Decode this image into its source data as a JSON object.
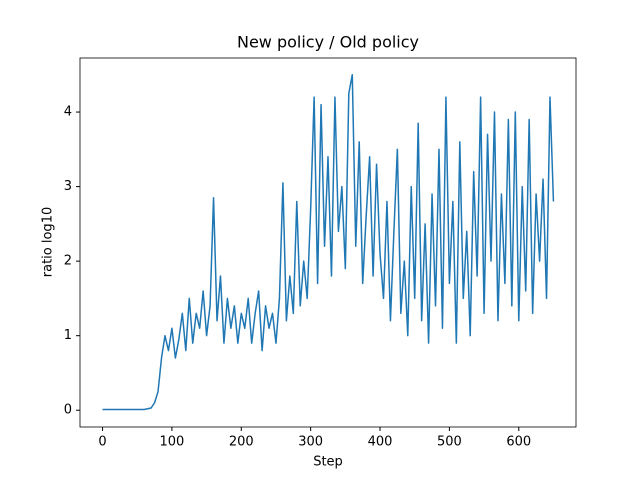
{
  "chart_data": {
    "type": "line",
    "title": "New policy / Old policy",
    "x_label": "Step",
    "y_label": "ratio log10",
    "xlim": [
      -32.5,
      682.5
    ],
    "ylim": [
      -0.225,
      4.725
    ],
    "xticks": [
      0,
      100,
      200,
      300,
      400,
      500,
      600
    ],
    "yticks": [
      0,
      1,
      2,
      3,
      4
    ],
    "x": [
      0,
      5,
      10,
      15,
      20,
      25,
      30,
      35,
      40,
      45,
      50,
      55,
      60,
      65,
      70,
      75,
      80,
      85,
      90,
      95,
      100,
      105,
      110,
      115,
      120,
      125,
      130,
      135,
      140,
      145,
      150,
      155,
      160,
      165,
      170,
      175,
      180,
      185,
      190,
      195,
      200,
      205,
      210,
      215,
      220,
      225,
      230,
      235,
      240,
      245,
      250,
      255,
      260,
      265,
      270,
      275,
      280,
      285,
      290,
      295,
      300,
      305,
      310,
      315,
      320,
      325,
      330,
      335,
      340,
      345,
      350,
      355,
      360,
      365,
      370,
      375,
      380,
      385,
      390,
      395,
      400,
      405,
      410,
      415,
      420,
      425,
      430,
      435,
      440,
      445,
      450,
      455,
      460,
      465,
      470,
      475,
      480,
      485,
      490,
      495,
      500,
      505,
      510,
      515,
      520,
      525,
      530,
      535,
      540,
      545,
      550,
      555,
      560,
      565,
      570,
      575,
      580,
      585,
      590,
      595,
      600,
      605,
      610,
      615,
      620,
      625,
      630,
      635,
      640,
      645,
      650
    ],
    "series": [
      {
        "color": "#1f77b4",
        "values": [
          0.01,
          0.01,
          0.01,
          0.01,
          0.01,
          0.01,
          0.01,
          0.01,
          0.01,
          0.01,
          0.01,
          0.01,
          0.01,
          0.02,
          0.03,
          0.1,
          0.25,
          0.7,
          1.0,
          0.8,
          1.1,
          0.7,
          0.95,
          1.3,
          0.8,
          1.5,
          0.9,
          1.3,
          1.1,
          1.6,
          1.0,
          1.4,
          2.85,
          1.2,
          1.8,
          0.9,
          1.5,
          1.1,
          1.4,
          0.9,
          1.3,
          1.1,
          1.5,
          0.9,
          1.3,
          1.6,
          0.8,
          1.4,
          1.1,
          1.3,
          0.9,
          1.5,
          3.05,
          1.2,
          1.8,
          1.3,
          2.8,
          1.4,
          2.0,
          1.5,
          2.7,
          4.2,
          1.7,
          4.1,
          2.2,
          3.4,
          1.8,
          4.2,
          2.4,
          3.0,
          1.9,
          4.25,
          4.5,
          2.2,
          3.6,
          1.7,
          2.6,
          3.4,
          1.8,
          3.3,
          2.1,
          1.5,
          2.8,
          1.2,
          2.4,
          3.5,
          1.3,
          2.0,
          1.0,
          3.0,
          1.5,
          3.85,
          1.2,
          2.5,
          0.9,
          2.9,
          1.4,
          3.5,
          1.1,
          4.2,
          1.7,
          2.8,
          0.9,
          3.6,
          1.5,
          2.4,
          1.0,
          3.2,
          1.8,
          4.2,
          1.3,
          3.7,
          2.0,
          4.0,
          1.2,
          2.9,
          1.7,
          3.9,
          1.4,
          4.0,
          1.2,
          3.0,
          1.6,
          3.9,
          1.3,
          2.9,
          2.0,
          3.1,
          1.5,
          4.2,
          2.8
        ]
      }
    ]
  }
}
